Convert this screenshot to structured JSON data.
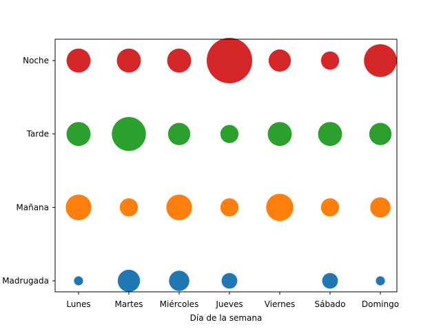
{
  "chart_data": {
    "type": "scatter",
    "xlabel": "Día de la semana",
    "ylabel": "",
    "title": "",
    "grid": false,
    "legend": "none",
    "x_categories": [
      "Lunes",
      "Martes",
      "Miércoles",
      "Jueves",
      "Viernes",
      "Sábado",
      "Domingo"
    ],
    "y_categories": [
      "Madrugada",
      "Mañana",
      "Tarde",
      "Noche"
    ],
    "size_unit": "relative",
    "series": [
      {
        "category": "Madrugada",
        "color": "#1f77b4",
        "sizes": [
          1,
          6,
          5,
          3,
          0,
          3,
          1
        ]
      },
      {
        "category": "Mañana",
        "color": "#ff7f0e",
        "sizes": [
          8,
          4,
          8,
          4,
          9,
          4,
          5
        ]
      },
      {
        "category": "Tarde",
        "color": "#2ca02c",
        "sizes": [
          7,
          14,
          6,
          4,
          7,
          7,
          6
        ]
      },
      {
        "category": "Noche",
        "color": "#d62728",
        "sizes": [
          7,
          7,
          7,
          25,
          6,
          4,
          13
        ]
      }
    ]
  }
}
